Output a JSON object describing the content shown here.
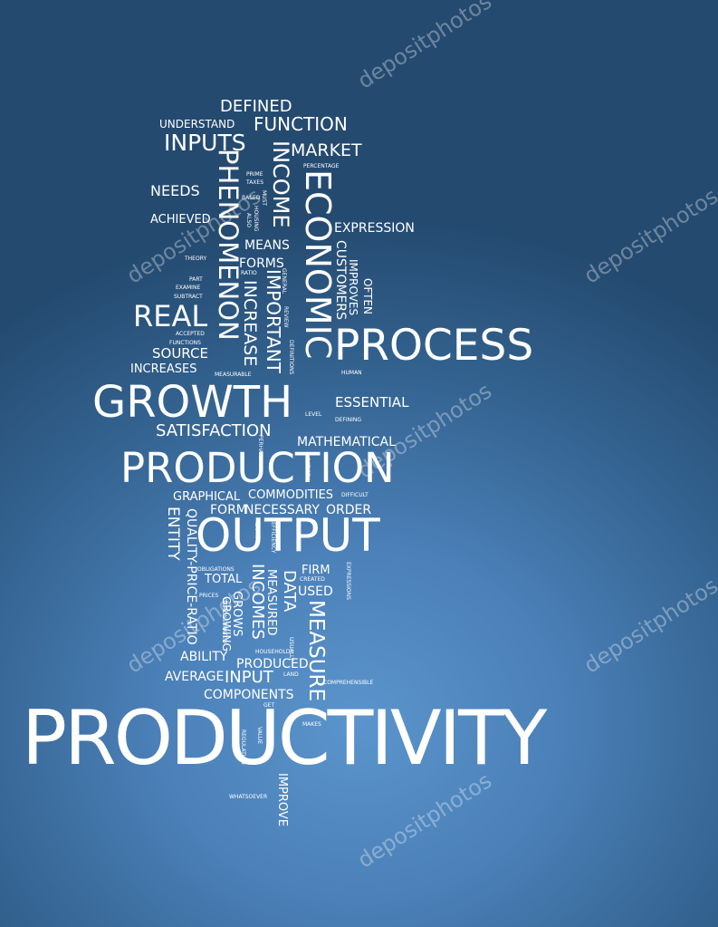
{
  "words": {
    "defined": "DEFINED",
    "understand": "UNDERSTAND",
    "function": "FUNCTION",
    "inputs": "INPUTS",
    "market": "MARKET",
    "percentage": "PERCENTAGE",
    "needs": "NEEDS",
    "prime": "PRIME",
    "taxes": "TAXES",
    "based": "BASED",
    "must": "MUST",
    "housing": "HOUSING",
    "also": "ALSO",
    "achieved": "ACHIEVED",
    "expression": "EXPRESSION",
    "theory": "THEORY",
    "means": "MEANS",
    "forms": "FORMS",
    "ratio": "RATIO",
    "part": "PART",
    "examine": "EXAMINE",
    "subtract": "SUBTRACT",
    "real": "REAL",
    "accepted": "ACCEPTED",
    "functions": "FUNCTIONS",
    "source": "SOURCE",
    "increases": "INCREASES",
    "measurable": "MEASURABLE",
    "process": "PROCESS",
    "human": "HUMAN",
    "growth": "GROWTH",
    "essential": "ESSENTIAL",
    "level": "LEVEL",
    "defining": "DEFINING",
    "satisfaction": "SATISFACTION",
    "mathematical": "MATHEMATICAL",
    "production": "PRODUCTION",
    "graphical": "GRAPHICAL",
    "commodities": "COMMODITIES",
    "difficult": "DIFFICULT",
    "form": "FORM",
    "necessary": "NECESSARY",
    "order": "ORDER",
    "output": "OUTPUT",
    "obligations": "OBLIGATIONS",
    "total": "TOTAL",
    "prices": "PRICES",
    "firm": "FIRM",
    "created": "CREATED",
    "used": "USED",
    "ability": "ABILITY",
    "households": "HOUSEHOLDS",
    "produced": "PRODUCED",
    "average": "AVERAGE",
    "input": "INPUT",
    "land": "LAND",
    "comprehensible": "COMPREHENSIBLE",
    "components": "COMPONENTS",
    "get": "GET",
    "makes": "MAKES",
    "productivity": "PRODUCTIVITY",
    "whatsoever": "WHATSOEVER",
    "phenomenon": "PHENOMENON",
    "income": "INCOME",
    "economic": "ECONOMIC",
    "important": "IMPORTANT",
    "increase": "INCREASE",
    "general": "GENERAL",
    "review": "REVIEW",
    "customers": "CUSTOMERS",
    "improves": "IMPROVES",
    "often": "OFTEN",
    "definitions": "DEFINITIONS",
    "perhaps": "PERHAPS",
    "satisfy": "SATISFY",
    "entity": "ENTITY",
    "quality_price_ratio": "QUALITY-PRICE-RATIO",
    "capital": "CAPITAL",
    "efficiency": "EFFICIENCY",
    "incomes": "INCOMES",
    "data": "DATA",
    "measured": "MEASURED",
    "measure": "MEASURE",
    "expressions": "EXPRESSIONS",
    "grows": "GROWS",
    "growing": "GROWING",
    "demonstrated": "DEMONSTRATED",
    "usually": "USUALLY",
    "value": "VALUE",
    "regulation": "REGULATION",
    "improve": "IMPROVE"
  },
  "watermark": "depositphotos"
}
